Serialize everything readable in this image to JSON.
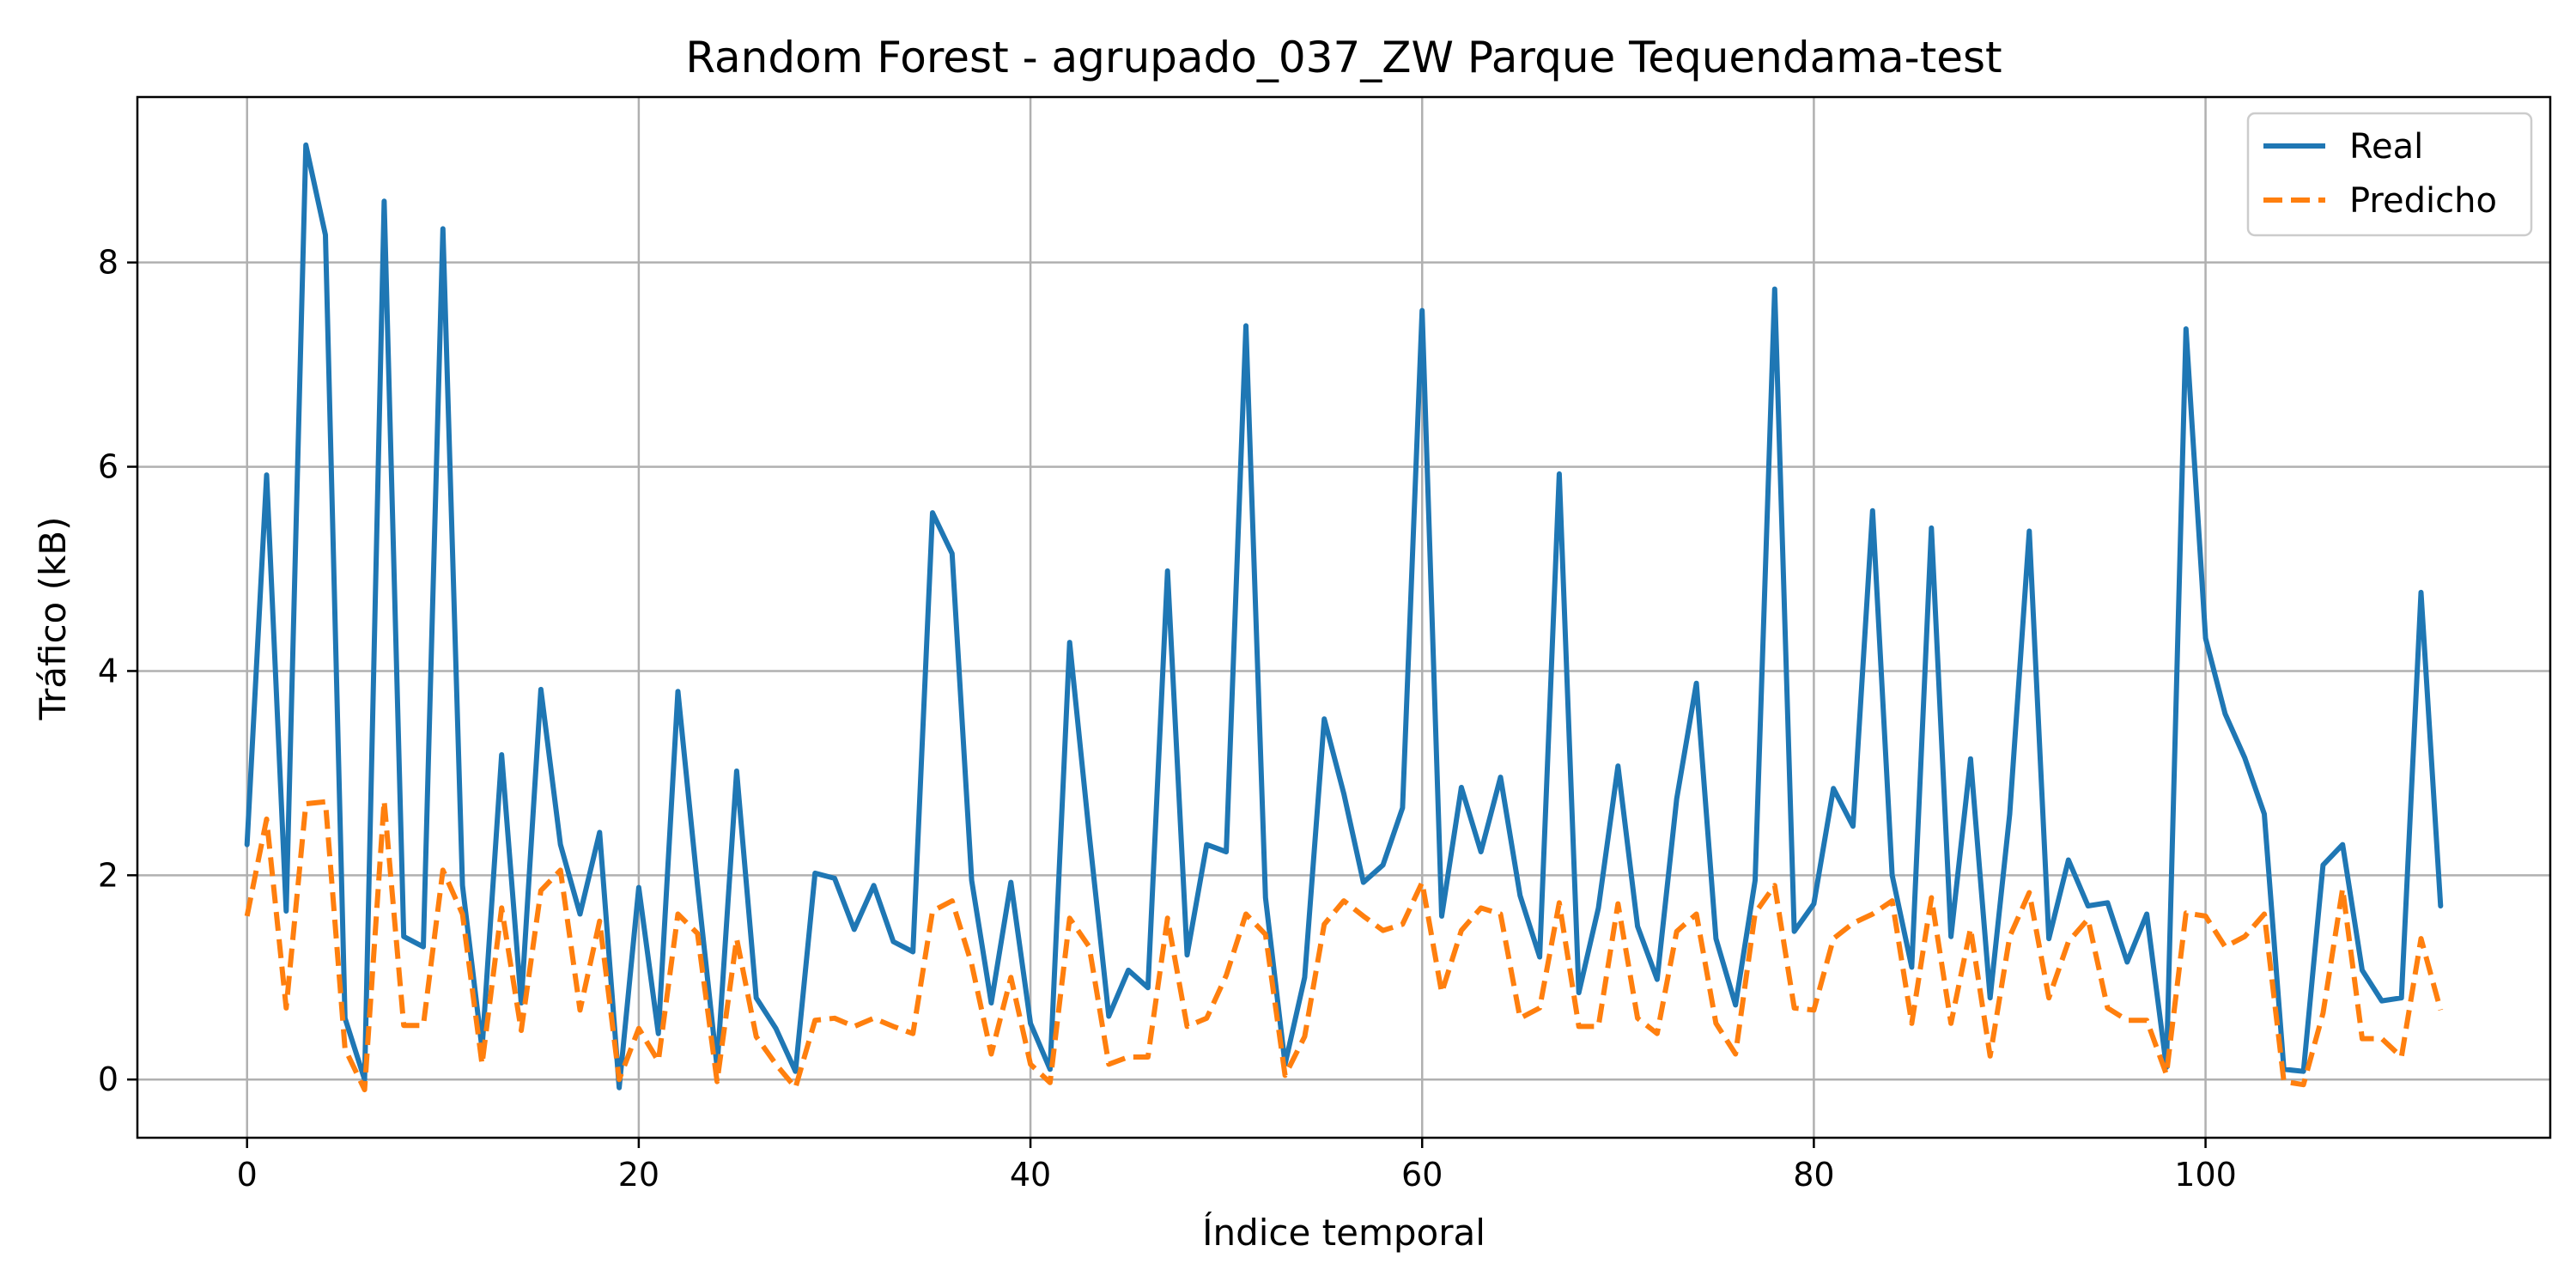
{
  "chart_data": {
    "type": "line",
    "title": "Random Forest - agrupado_037_ZW Parque Tequendama-test",
    "xlabel": "Índice temporal",
    "ylabel": "Tráfico (kB)",
    "xlim": [
      -5.6,
      117.6
    ],
    "ylim": [
      -0.57,
      9.62
    ],
    "xticks": [
      0,
      20,
      40,
      60,
      80,
      100
    ],
    "yticks": [
      0,
      2,
      4,
      6,
      8
    ],
    "grid": true,
    "legend_position": "top-right",
    "x": [
      0,
      1,
      2,
      3,
      4,
      5,
      6,
      7,
      8,
      9,
      10,
      11,
      12,
      13,
      14,
      15,
      16,
      17,
      18,
      19,
      20,
      21,
      22,
      23,
      24,
      25,
      26,
      27,
      28,
      29,
      30,
      31,
      32,
      33,
      34,
      35,
      36,
      37,
      38,
      39,
      40,
      41,
      42,
      43,
      44,
      45,
      46,
      47,
      48,
      49,
      50,
      51,
      52,
      53,
      54,
      55,
      56,
      57,
      58,
      59,
      60,
      61,
      62,
      63,
      64,
      65,
      66,
      67,
      68,
      69,
      70,
      71,
      72,
      73,
      74,
      75,
      76,
      77,
      78,
      79,
      80,
      81,
      82,
      83,
      84,
      85,
      86,
      87,
      88,
      89,
      90,
      91,
      92,
      93,
      94,
      95,
      96,
      97,
      98,
      99,
      100,
      101,
      102,
      103,
      104,
      105,
      106,
      107,
      108,
      109,
      110,
      111,
      112
    ],
    "series": [
      {
        "name": "Real",
        "color": "#1f77b4",
        "style": "solid",
        "values": [
          2.3,
          5.92,
          1.65,
          9.15,
          8.27,
          0.6,
          0.0,
          8.6,
          1.4,
          1.3,
          8.33,
          1.9,
          0.3,
          3.18,
          0.75,
          3.82,
          2.3,
          1.62,
          2.42,
          -0.08,
          1.88,
          0.45,
          3.8,
          1.9,
          0.12,
          3.02,
          0.8,
          0.5,
          0.08,
          2.02,
          1.97,
          1.47,
          1.9,
          1.35,
          1.25,
          5.55,
          5.15,
          1.95,
          0.75,
          1.93,
          0.55,
          0.1,
          4.28,
          2.4,
          0.62,
          1.07,
          0.9,
          4.98,
          1.22,
          2.3,
          2.23,
          7.38,
          1.78,
          0.15,
          1.0,
          3.53,
          2.8,
          1.93,
          2.1,
          2.66,
          7.53,
          1.6,
          2.86,
          2.23,
          2.96,
          1.8,
          1.2,
          5.93,
          0.85,
          1.68,
          3.07,
          1.5,
          0.98,
          2.75,
          3.88,
          1.38,
          0.73,
          1.95,
          7.74,
          1.45,
          1.72,
          2.85,
          2.48,
          5.57,
          2.0,
          1.1,
          5.4,
          1.4,
          3.14,
          0.8,
          2.6,
          5.37,
          1.38,
          2.15,
          1.7,
          1.73,
          1.15,
          1.62,
          0.12,
          7.35,
          4.32,
          3.58,
          3.15,
          2.6,
          0.1,
          0.08,
          2.1,
          2.3,
          1.07,
          0.77,
          0.8,
          4.77,
          1.7
        ]
      },
      {
        "name": "Predicho",
        "color": "#ff7f0e",
        "style": "dashed",
        "values": [
          1.6,
          2.55,
          0.7,
          2.7,
          2.72,
          0.3,
          -0.1,
          2.73,
          0.53,
          0.53,
          2.05,
          1.62,
          0.15,
          1.68,
          0.48,
          1.85,
          2.05,
          0.68,
          1.55,
          0.0,
          0.5,
          0.18,
          1.62,
          1.43,
          -0.02,
          1.38,
          0.42,
          0.15,
          -0.08,
          0.58,
          0.6,
          0.52,
          0.6,
          0.52,
          0.45,
          1.65,
          1.75,
          1.13,
          0.25,
          1.0,
          0.15,
          -0.03,
          1.58,
          1.3,
          0.15,
          0.22,
          0.22,
          1.58,
          0.52,
          0.6,
          1.02,
          1.62,
          1.42,
          0.04,
          0.42,
          1.52,
          1.75,
          1.6,
          1.46,
          1.52,
          1.93,
          0.85,
          1.46,
          1.68,
          1.62,
          0.6,
          0.7,
          1.73,
          0.52,
          0.52,
          1.72,
          0.6,
          0.45,
          1.45,
          1.62,
          0.55,
          0.25,
          1.63,
          1.9,
          0.7,
          0.68,
          1.38,
          1.53,
          1.62,
          1.75,
          0.55,
          1.78,
          0.55,
          1.48,
          0.23,
          1.4,
          1.83,
          0.8,
          1.35,
          1.57,
          0.7,
          0.58,
          0.58,
          0.05,
          1.63,
          1.6,
          1.3,
          1.4,
          1.62,
          -0.02,
          -0.05,
          0.65,
          1.87,
          0.4,
          0.4,
          0.22,
          1.38,
          0.68
        ]
      }
    ]
  }
}
